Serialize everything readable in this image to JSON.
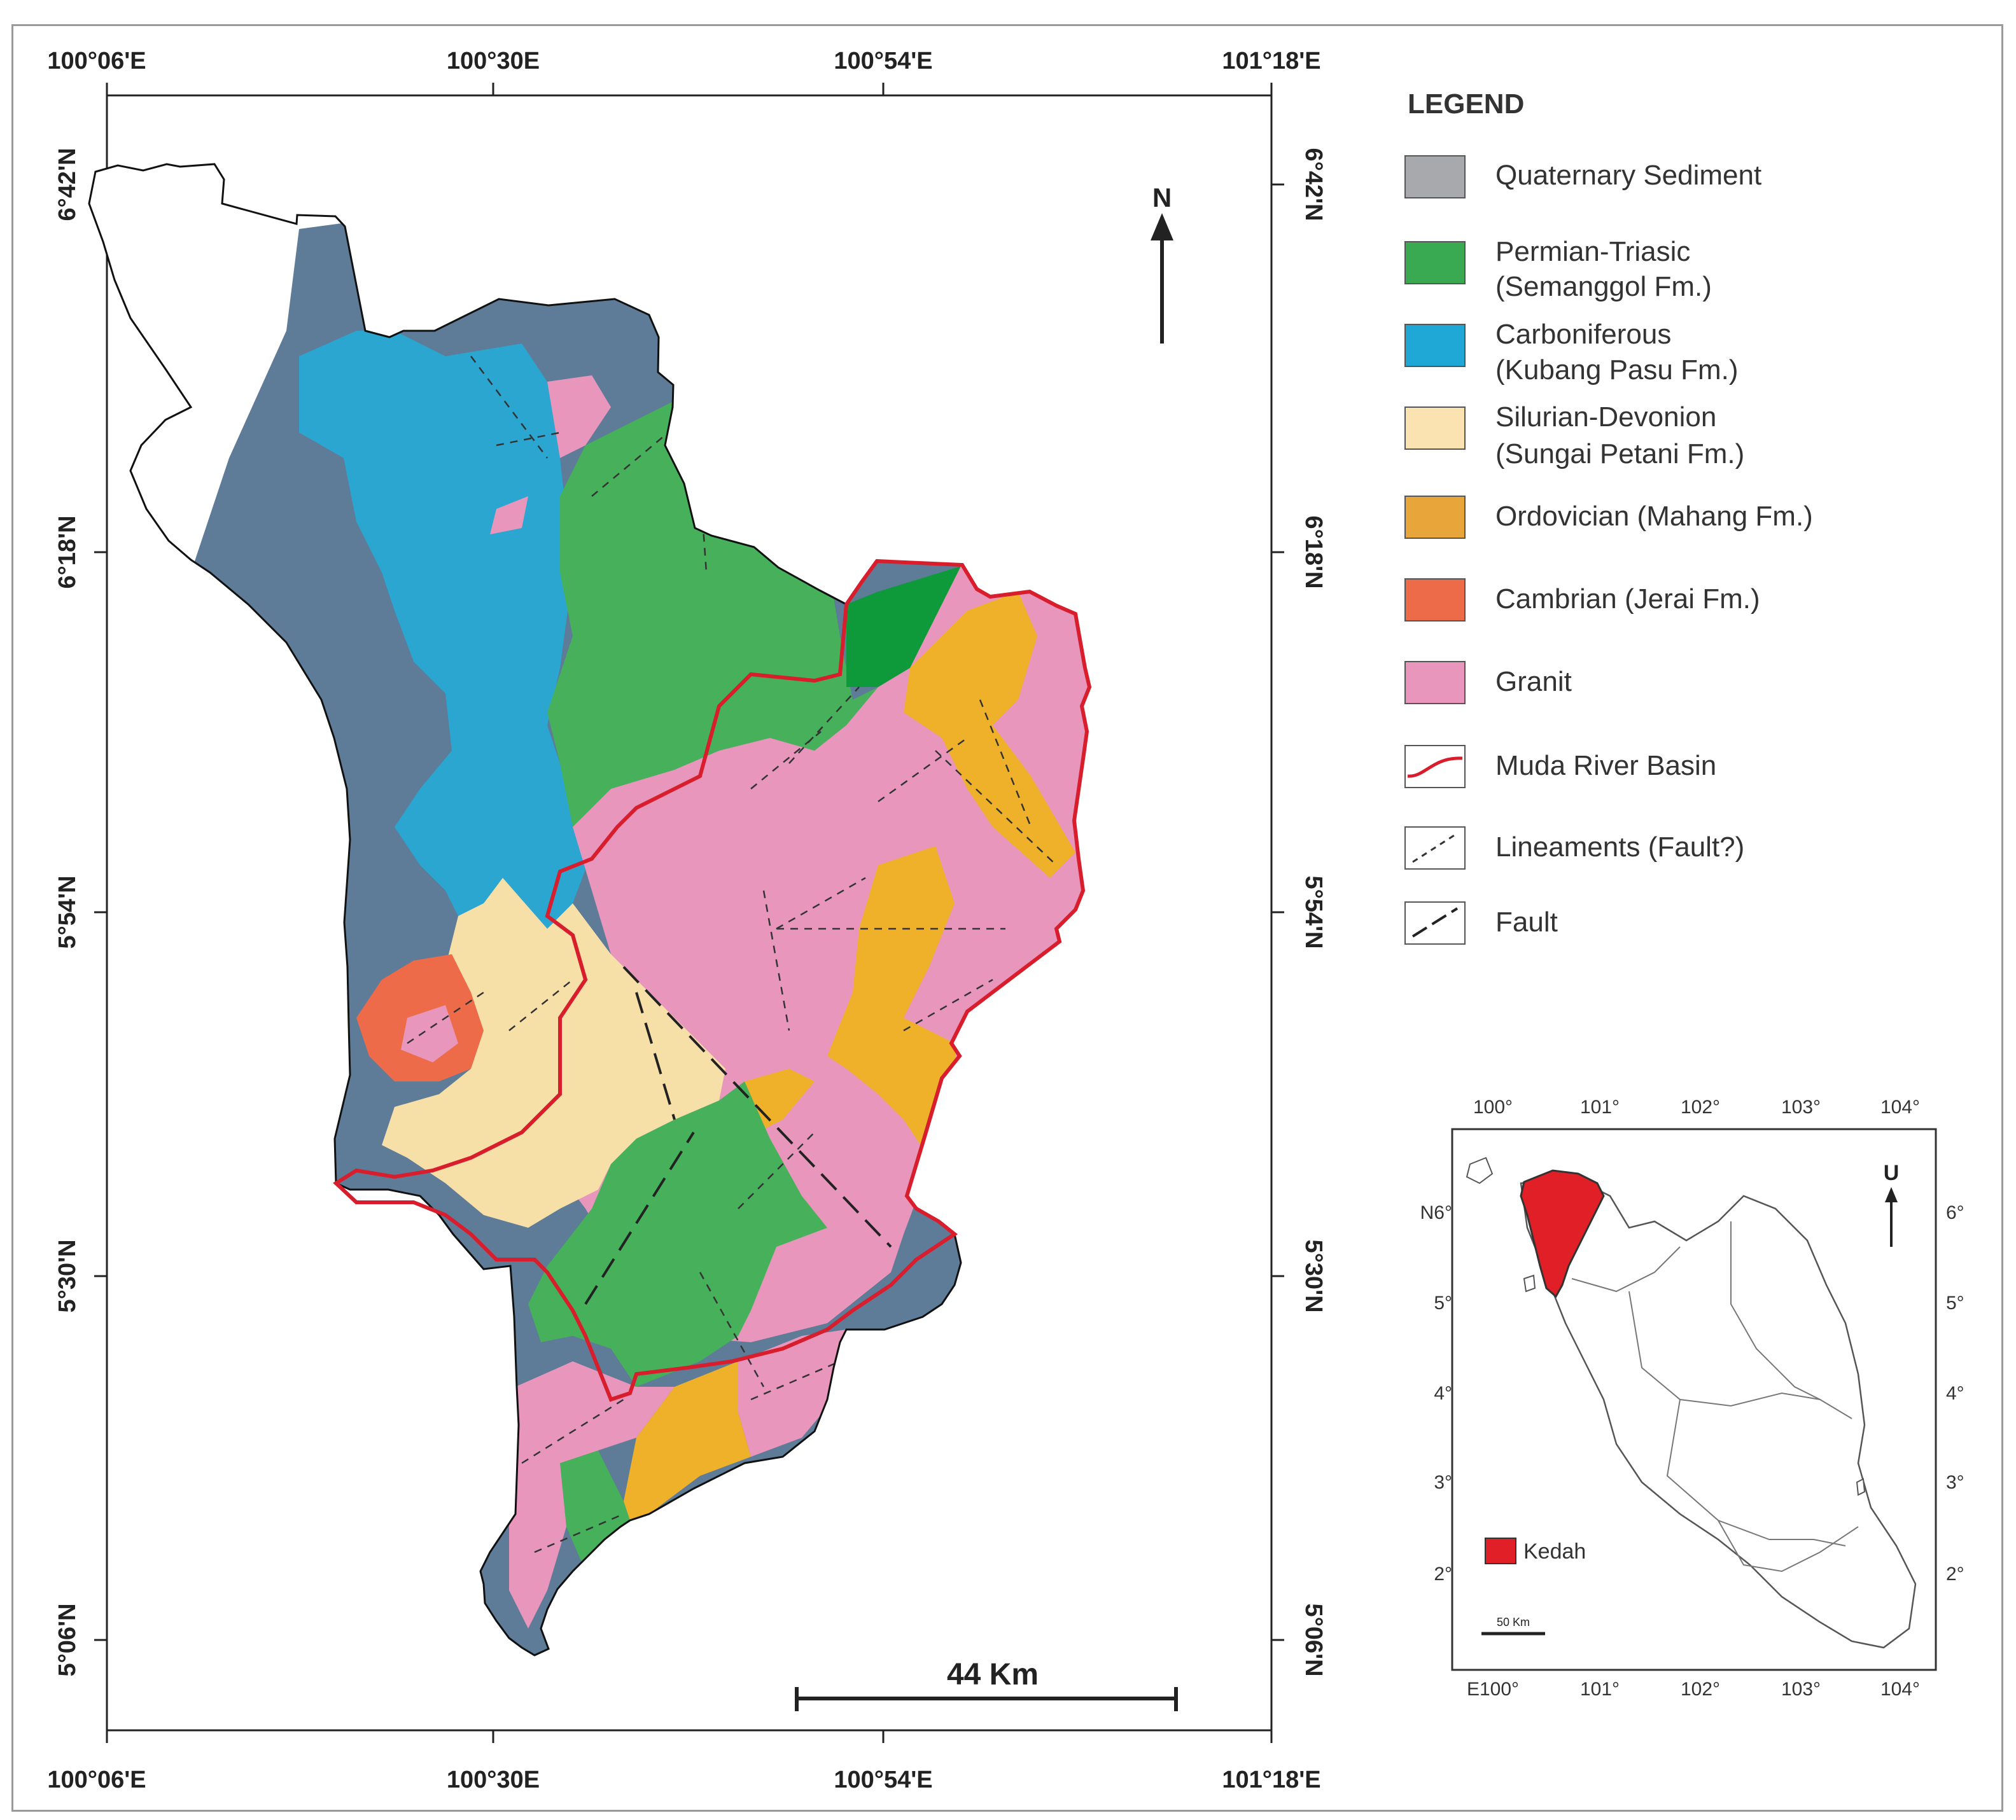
{
  "main_map": {
    "lon_labels": [
      "100°06'E",
      "100°30E",
      "100°54'E",
      "101°18'E"
    ],
    "lat_labels": [
      "6°42'N",
      "6°18'N",
      "5°54'N",
      "5°30'N",
      "5°06'N"
    ],
    "north_label": "N",
    "scale_label": "44 Km",
    "colors": {
      "quaternary": "#5e7b98",
      "permian_triasic": "#46b05a",
      "permian_dark": "#0e9a3a",
      "carboniferous": "#2aa6d1",
      "silurian_devonion": "#f7dfa8",
      "ordovician": "#efb12a",
      "cambrian": "#ee6b4a",
      "granit": "#e896bc",
      "basin": "#d81e2c"
    }
  },
  "legend": {
    "title": "LEGEND",
    "items": [
      {
        "label": "Quaternary Sediment",
        "color": "#a7a9ac"
      },
      {
        "label": "Permian-Triasic",
        "label2": "(Semanggol Fm.)",
        "color": "#3aaa52"
      },
      {
        "label": "Carboniferous",
        "label2": "(Kubang Pasu Fm.)",
        "color": "#1fa8d6"
      },
      {
        "label": "Silurian-Devonion",
        "label2": "(Sungai Petani Fm.)",
        "color": "#fbe3b1"
      },
      {
        "label": "Ordovician (Mahang Fm.)",
        "color": "#e8a53a"
      },
      {
        "label": "Cambrian (Jerai Fm.)",
        "color": "#ee6b4a"
      },
      {
        "label": "Granit",
        "color": "#e896bc"
      },
      {
        "label": "Muda River Basin",
        "symbol": "basin-line"
      },
      {
        "label": "Lineaments (Fault?)",
        "symbol": "dashed-line"
      },
      {
        "label": "Fault",
        "symbol": "long-dash-line"
      }
    ]
  },
  "inset": {
    "top_labels": [
      "100°",
      "101°",
      "102°",
      "103°",
      "104°"
    ],
    "bottom_labels": [
      "E100°",
      "101°",
      "102°",
      "103°",
      "104°"
    ],
    "left_labels": [
      "N6°",
      "5°",
      "4°",
      "3°",
      "2°"
    ],
    "right_labels": [
      "6°",
      "5°",
      "4°",
      "3°",
      "2°"
    ],
    "north_label": "U",
    "scale_label": "50 Km",
    "highlight_label": "Kedah",
    "highlight_color": "#e11f26"
  }
}
